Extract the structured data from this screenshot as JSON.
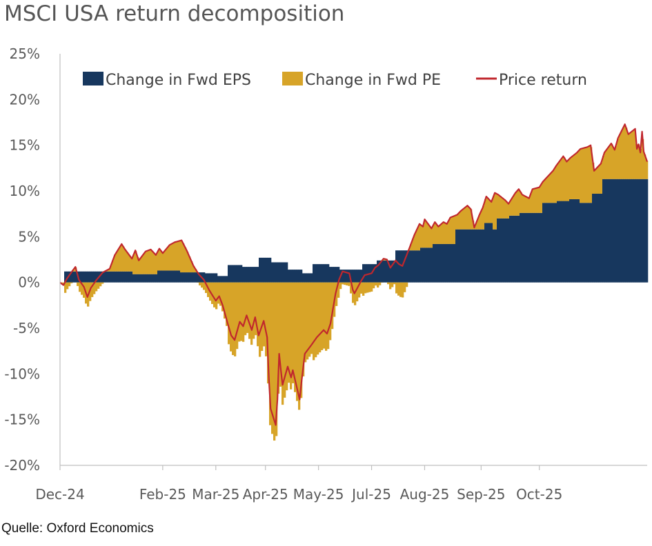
{
  "chart_data": {
    "type": "area",
    "title": "MSCI USA return decomposition",
    "source": "Quelle: Oxford Economics",
    "y_axis": {
      "min": -20,
      "max": 25,
      "step": 5,
      "unit": "%",
      "tick_labels": [
        "-20%",
        "-15%",
        "-10%",
        "-5%",
        "0%",
        "5%",
        "10%",
        "15%",
        "20%",
        "25%"
      ]
    },
    "x_axis": {
      "start": "2024-12-02",
      "end": "2025-11-10",
      "ticks": [
        {
          "label": "Dec-24",
          "date": "2024-12-02"
        },
        {
          "label": "Feb-25",
          "date": "2025-01-31"
        },
        {
          "label": "Mar-25",
          "date": "2025-03-03"
        },
        {
          "label": "Apr-25",
          "date": "2025-04-01"
        },
        {
          "label": "May-25",
          "date": "2025-05-02"
        },
        {
          "label": "Jul-25",
          "date": "2025-06-02"
        },
        {
          "label": "Aug-25",
          "date": "2025-07-03"
        },
        {
          "label": "Sep-25",
          "date": "2025-08-05"
        },
        {
          "label": "Oct-25",
          "date": "2025-09-08"
        }
      ]
    },
    "legend": {
      "position": "top"
    },
    "grid": false,
    "colors": {
      "eps": "#17375e",
      "pe": "#d7a428",
      "price": "#c0272d"
    },
    "series_labels": {
      "eps": "Change in Fwd EPS",
      "pe": "Change in Fwd PE",
      "price": "Price return"
    },
    "eps_steps": [
      [
        "2024-12-02",
        0.0
      ],
      [
        "2024-12-05",
        1.2
      ],
      [
        "2025-01-13",
        0.9
      ],
      [
        "2025-01-28",
        1.3
      ],
      [
        "2025-02-10",
        1.1
      ],
      [
        "2025-02-25",
        1.0
      ],
      [
        "2025-03-04",
        0.7
      ],
      [
        "2025-03-10",
        1.9
      ],
      [
        "2025-03-18",
        1.7
      ],
      [
        "2025-03-28",
        2.7
      ],
      [
        "2025-04-04",
        2.2
      ],
      [
        "2025-04-14",
        1.4
      ],
      [
        "2025-04-22",
        1.0
      ],
      [
        "2025-04-28",
        2.0
      ],
      [
        "2025-05-08",
        1.7
      ],
      [
        "2025-05-14",
        1.4
      ],
      [
        "2025-05-28",
        2.0
      ],
      [
        "2025-06-05",
        2.4
      ],
      [
        "2025-06-16",
        3.5
      ],
      [
        "2025-06-30",
        3.8
      ],
      [
        "2025-07-08",
        4.2
      ],
      [
        "2025-07-21",
        5.8
      ],
      [
        "2025-08-07",
        6.5
      ],
      [
        "2025-08-12",
        5.8
      ],
      [
        "2025-08-14",
        7.0
      ],
      [
        "2025-08-21",
        7.3
      ],
      [
        "2025-08-28",
        7.6
      ],
      [
        "2025-09-10",
        8.7
      ],
      [
        "2025-09-18",
        8.9
      ],
      [
        "2025-09-25",
        9.1
      ],
      [
        "2025-10-01",
        8.7
      ],
      [
        "2025-10-09",
        9.7
      ],
      [
        "2025-10-15",
        11.3
      ]
    ],
    "price_return": [
      [
        "2024-12-02",
        0.0
      ],
      [
        "2024-12-04",
        -0.3
      ],
      [
        "2024-12-06",
        0.4
      ],
      [
        "2024-12-09",
        1.2
      ],
      [
        "2024-12-11",
        1.7
      ],
      [
        "2024-12-13",
        0.3
      ],
      [
        "2024-12-16",
        -0.5
      ],
      [
        "2024-12-18",
        -1.6
      ],
      [
        "2024-12-20",
        -0.6
      ],
      [
        "2024-12-23",
        0.2
      ],
      [
        "2024-12-27",
        1.1
      ],
      [
        "2024-12-31",
        1.5
      ],
      [
        "2025-01-03",
        3.0
      ],
      [
        "2025-01-07",
        4.2
      ],
      [
        "2025-01-09",
        3.6
      ],
      [
        "2025-01-13",
        2.6
      ],
      [
        "2025-01-15",
        3.5
      ],
      [
        "2025-01-17",
        2.4
      ],
      [
        "2025-01-21",
        3.4
      ],
      [
        "2025-01-24",
        3.6
      ],
      [
        "2025-01-27",
        3.0
      ],
      [
        "2025-01-29",
        3.7
      ],
      [
        "2025-01-31",
        3.2
      ],
      [
        "2025-02-04",
        4.1
      ],
      [
        "2025-02-07",
        4.4
      ],
      [
        "2025-02-11",
        4.6
      ],
      [
        "2025-02-14",
        3.5
      ],
      [
        "2025-02-18",
        1.8
      ],
      [
        "2025-02-21",
        0.9
      ],
      [
        "2025-02-24",
        0.3
      ],
      [
        "2025-02-27",
        -0.8
      ],
      [
        "2025-03-03",
        -2.0
      ],
      [
        "2025-03-05",
        -1.5
      ],
      [
        "2025-03-07",
        -2.5
      ],
      [
        "2025-03-10",
        -4.5
      ],
      [
        "2025-03-12",
        -5.8
      ],
      [
        "2025-03-14",
        -6.3
      ],
      [
        "2025-03-17",
        -4.3
      ],
      [
        "2025-03-19",
        -4.8
      ],
      [
        "2025-03-21",
        -3.6
      ],
      [
        "2025-03-24",
        -5.2
      ],
      [
        "2025-03-26",
        -3.8
      ],
      [
        "2025-03-28",
        -5.8
      ],
      [
        "2025-03-31",
        -4.2
      ],
      [
        "2025-04-02",
        -6.0
      ],
      [
        "2025-04-03",
        -10.5
      ],
      [
        "2025-04-04",
        -13.8
      ],
      [
        "2025-04-07",
        -15.6
      ],
      [
        "2025-04-08",
        -12.8
      ],
      [
        "2025-04-09",
        -7.8
      ],
      [
        "2025-04-10",
        -9.6
      ],
      [
        "2025-04-11",
        -11.2
      ],
      [
        "2025-04-14",
        -9.2
      ],
      [
        "2025-04-16",
        -10.4
      ],
      [
        "2025-04-17",
        -9.6
      ],
      [
        "2025-04-21",
        -12.8
      ],
      [
        "2025-04-22",
        -11.0
      ],
      [
        "2025-04-24",
        -7.8
      ],
      [
        "2025-04-28",
        -6.8
      ],
      [
        "2025-05-01",
        -6.0
      ],
      [
        "2025-05-05",
        -5.2
      ],
      [
        "2025-05-07",
        -5.6
      ],
      [
        "2025-05-09",
        -4.5
      ],
      [
        "2025-05-12",
        -1.2
      ],
      [
        "2025-05-14",
        0.3
      ],
      [
        "2025-05-16",
        1.2
      ],
      [
        "2025-05-20",
        1.0
      ],
      [
        "2025-05-22",
        -0.8
      ],
      [
        "2025-05-23",
        -1.2
      ],
      [
        "2025-05-27",
        0.2
      ],
      [
        "2025-05-29",
        0.8
      ],
      [
        "2025-06-02",
        1.0
      ],
      [
        "2025-06-04",
        1.6
      ],
      [
        "2025-06-06",
        1.9
      ],
      [
        "2025-06-09",
        2.6
      ],
      [
        "2025-06-11",
        2.5
      ],
      [
        "2025-06-13",
        1.6
      ],
      [
        "2025-06-16",
        2.4
      ],
      [
        "2025-06-18",
        2.0
      ],
      [
        "2025-06-20",
        1.8
      ],
      [
        "2025-06-24",
        3.7
      ],
      [
        "2025-06-27",
        5.2
      ],
      [
        "2025-06-30",
        6.4
      ],
      [
        "2025-07-02",
        6.1
      ],
      [
        "2025-07-03",
        6.9
      ],
      [
        "2025-07-07",
        5.9
      ],
      [
        "2025-07-09",
        6.6
      ],
      [
        "2025-07-11",
        6.1
      ],
      [
        "2025-07-14",
        6.6
      ],
      [
        "2025-07-16",
        6.4
      ],
      [
        "2025-07-18",
        7.1
      ],
      [
        "2025-07-22",
        7.4
      ],
      [
        "2025-07-24",
        7.8
      ],
      [
        "2025-07-28",
        8.4
      ],
      [
        "2025-07-30",
        8.0
      ],
      [
        "2025-08-01",
        6.0
      ],
      [
        "2025-08-04",
        7.4
      ],
      [
        "2025-08-06",
        8.2
      ],
      [
        "2025-08-08",
        9.4
      ],
      [
        "2025-08-11",
        8.8
      ],
      [
        "2025-08-13",
        9.8
      ],
      [
        "2025-08-15",
        9.6
      ],
      [
        "2025-08-19",
        9.0
      ],
      [
        "2025-08-21",
        8.6
      ],
      [
        "2025-08-25",
        9.8
      ],
      [
        "2025-08-27",
        10.2
      ],
      [
        "2025-08-29",
        9.6
      ],
      [
        "2025-09-02",
        9.2
      ],
      [
        "2025-09-04",
        10.2
      ],
      [
        "2025-09-08",
        10.4
      ],
      [
        "2025-09-10",
        11.0
      ],
      [
        "2025-09-12",
        11.4
      ],
      [
        "2025-09-16",
        12.2
      ],
      [
        "2025-09-18",
        12.8
      ],
      [
        "2025-09-22",
        13.8
      ],
      [
        "2025-09-24",
        13.2
      ],
      [
        "2025-09-26",
        13.6
      ],
      [
        "2025-09-30",
        14.2
      ],
      [
        "2025-10-02",
        14.6
      ],
      [
        "2025-10-06",
        14.8
      ],
      [
        "2025-10-08",
        15.0
      ],
      [
        "2025-10-10",
        12.2
      ],
      [
        "2025-10-14",
        13.0
      ],
      [
        "2025-10-16",
        14.2
      ],
      [
        "2025-10-20",
        15.2
      ],
      [
        "2025-10-22",
        14.5
      ],
      [
        "2025-10-24",
        15.8
      ],
      [
        "2025-10-28",
        17.3
      ],
      [
        "2025-10-30",
        16.2
      ],
      [
        "2025-11-03",
        16.8
      ],
      [
        "2025-11-04",
        14.6
      ],
      [
        "2025-11-05",
        15.1
      ],
      [
        "2025-11-06",
        14.2
      ],
      [
        "2025-11-07",
        16.5
      ],
      [
        "2025-11-08",
        14.3
      ],
      [
        "2025-11-10",
        13.2
      ]
    ]
  }
}
